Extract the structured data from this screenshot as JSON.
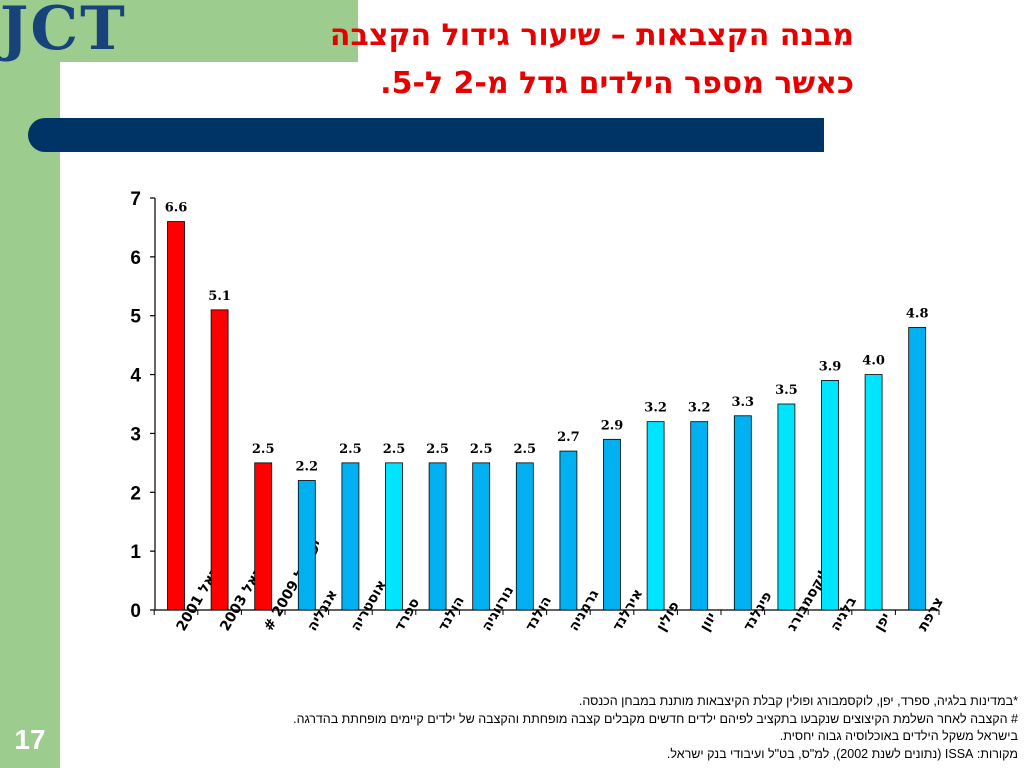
{
  "logo": {
    "text": "JCT"
  },
  "title": {
    "line1": "מבנה הקצבאות – שיעור גידול הקצבה",
    "line2": "כאשר מספר הילדים גדל מ-2 ל-5."
  },
  "page_number": "17",
  "notes": [
    "*במדינות בלגיה, ספרד, יפן, לוקסמבורג ופולין קבלת הקיצבאות מותנת במבחן הכנסה.",
    "# הקצבה לאחר השלמת הקיצוצים שנקבעו בתקציב לפיהם ילדים חדשים מקבלים קצבה מופחתת והקצבה של ילדים קיימים מופחתת בהדרגה.",
    "בישראל משקל הילדים באוכלוסיה גבוה יחסית.",
    "מקורות:  ISSA  (נתונים לשנת 2002), למ\"ס, בט\"ל ועיבודי בנק ישראל."
  ],
  "colors": {
    "israel": "#ff0000",
    "income_tested": "#00e5ff",
    "other": "#00b0f0",
    "title": "#e60000",
    "bar_band": "#003366",
    "sidebar": "#9ccc8e"
  },
  "chart_data": {
    "type": "bar",
    "title": "",
    "xlabel": "",
    "ylabel": "",
    "ylim": [
      0,
      7
    ],
    "yticks": [
      0,
      1,
      2,
      3,
      4,
      5,
      6,
      7
    ],
    "grid": false,
    "categories": [
      "ישראל 2001",
      "ישראל 2003",
      "ישראל 2009 #",
      "אנגליה",
      "אוסטריה",
      "ספרד",
      "הולנד",
      "נורווגיה",
      "הולנד",
      "גרמניה",
      "אירלנד",
      "פולין",
      "יוון",
      "פינלנד",
      "לוקסמבורג",
      "בלגיה",
      "יפן",
      "צרפת"
    ],
    "values": [
      6.6,
      5.1,
      2.5,
      2.2,
      2.5,
      2.5,
      2.5,
      2.5,
      2.5,
      2.7,
      2.9,
      3.2,
      3.2,
      3.3,
      3.5,
      3.9,
      4.0,
      4.8
    ],
    "value_labels": [
      "6.6",
      "5.1",
      "2.5",
      "2.2",
      "2.5",
      "2.5",
      "2.5",
      "2.5",
      "2.5",
      "2.7",
      "2.9",
      "3.2",
      "3.2",
      "3.3",
      "3.5",
      "3.9",
      "4.0",
      "4.8"
    ],
    "bar_colors": [
      "israel",
      "israel",
      "israel",
      "other",
      "other",
      "income_tested",
      "other",
      "other",
      "other",
      "other",
      "other",
      "income_tested",
      "other",
      "other",
      "income_tested",
      "income_tested",
      "income_tested",
      "other"
    ]
  }
}
